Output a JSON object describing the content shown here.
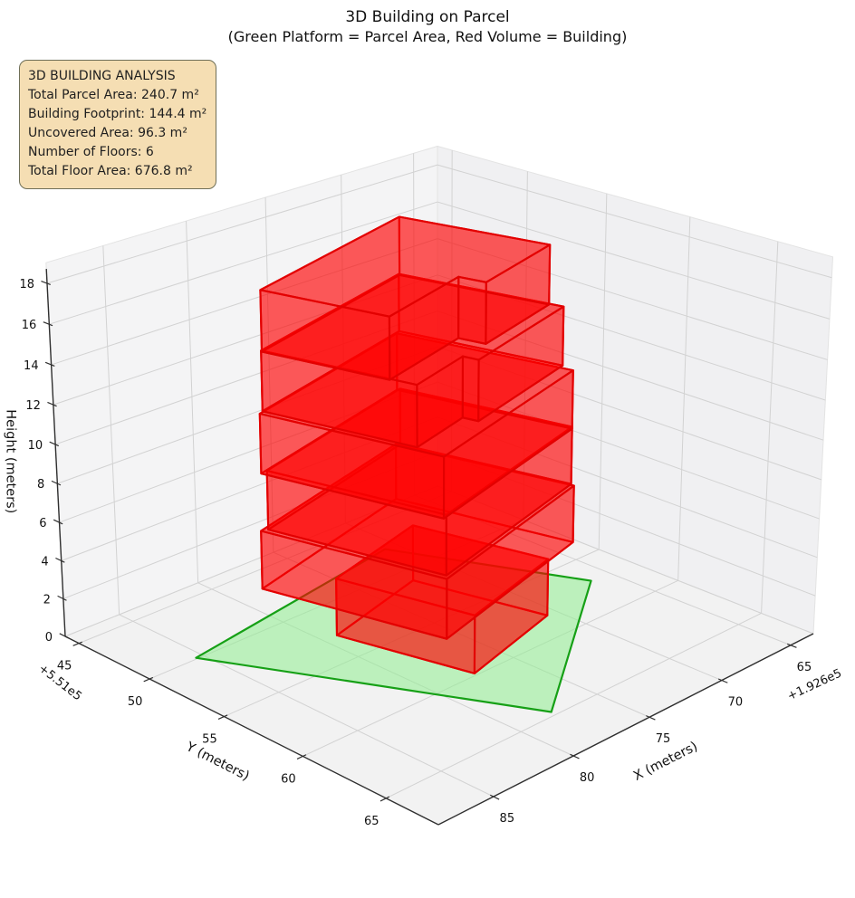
{
  "title": {
    "line1": "3D Building on Parcel",
    "line2": "(Green Platform = Parcel Area, Red Volume = Building)"
  },
  "info_box": {
    "title": "3D BUILDING ANALYSIS",
    "lines": [
      "3D BUILDING ANALYSIS",
      "Total Parcel Area: 240.7 m²",
      "Building Footprint: 144.4 m²",
      "Uncovered Area: 96.3 m²",
      "Number of Floors: 6",
      "Total Floor Area: 676.8 m²"
    ]
  },
  "chart_data": {
    "type": "3d-building",
    "title": "3D Building on Parcel",
    "subtitle": "(Green Platform = Parcel Area, Red Volume = Building)",
    "legend_note": "Green Platform = Parcel Area, Red Volume = Building",
    "stats": {
      "total_parcel_area_m2": 240.7,
      "building_footprint_m2": 144.4,
      "uncovered_area_m2": 96.3,
      "number_of_floors": 6,
      "total_floor_area_m2": 676.8,
      "floor_height_m": 3
    },
    "axes": {
      "x": {
        "label": "X (meters)",
        "ticks": [
          85,
          80,
          75,
          70,
          65
        ],
        "offset_text": "+1.926e5",
        "lim": [
          63.3,
          88.3
        ]
      },
      "y": {
        "label": "Y (meters)",
        "ticks": [
          45,
          50,
          55,
          60,
          65
        ],
        "offset_text": "+5.51e5",
        "lim": [
          44.0,
          68.0
        ]
      },
      "z": {
        "label": "Height (meters)",
        "ticks": [
          0,
          2,
          4,
          6,
          8,
          10,
          12,
          14,
          16,
          18
        ],
        "lim": [
          0,
          19
        ]
      }
    },
    "parcel": {
      "z": 0,
      "polygon_xy": [
        [
          85.4,
          49.9
        ],
        [
          70.8,
          47.6
        ],
        [
          66.3,
          57.1
        ],
        [
          77.7,
          64.7
        ]
      ],
      "area_m2": 240.7
    },
    "building": {
      "frame": {
        "origin": [
          82.9,
          51.0
        ],
        "e1": [
          -0.97,
          -0.24
        ],
        "e2": [
          -0.24,
          0.97
        ]
      },
      "floors": [
        {
          "z0": 0,
          "z1": 3,
          "poly_st": [
            [
              3.2,
              2.6
            ],
            [
              10.2,
              2.6
            ],
            [
              10.2,
              9.9
            ],
            [
              3.2,
              9.9
            ]
          ]
        },
        {
          "z0": 3,
          "z1": 6,
          "poly_st": [
            [
              0.5,
              0.3
            ],
            [
              12.5,
              0.3
            ],
            [
              12.5,
              10.0
            ],
            [
              0.5,
              10.0
            ]
          ]
        },
        {
          "z0": 6,
          "z1": 9,
          "poly_st": [
            [
              0.8,
              0.5
            ],
            [
              12.6,
              0.5
            ],
            [
              12.6,
              9.8
            ],
            [
              0.8,
              9.8
            ]
          ]
        },
        {
          "z0": 9,
          "z1": 12,
          "poly_st": [
            [
              0.4,
              0.45
            ],
            [
              12.4,
              0.45
            ],
            [
              12.4,
              9.9
            ],
            [
              0.4,
              9.9
            ]
          ]
        },
        {
          "z0": 12,
          "z1": 15,
          "poly_st": [
            [
              0.7,
              0.4
            ],
            [
              12.7,
              0.4
            ],
            [
              12.7,
              9.2
            ],
            [
              4.7,
              9.2
            ],
            [
              4.7,
              8.4
            ],
            [
              0.7,
              8.4
            ]
          ]
        },
        {
          "z0": 15,
          "z1": 18,
          "poly_st": [
            [
              0.6,
              0.5
            ],
            [
              12.6,
              0.5
            ],
            [
              12.6,
              8.5
            ],
            [
              6.6,
              8.5
            ],
            [
              6.6,
              7.1
            ],
            [
              0.6,
              7.1
            ]
          ]
        }
      ]
    },
    "colors": {
      "building_face": "#ff0000",
      "building_face_alpha": 0.4,
      "building_edge": "#e30000",
      "parcel_face": "#90ee90",
      "parcel_face_alpha": 0.55,
      "parcel_edge": "#16a016",
      "pane": "#f2f2f2",
      "grid": "#d2d2d2",
      "axis_line": "#2f2f2f",
      "info_box_bg": "#f5deb3",
      "info_box_border": "#6f6f58"
    }
  }
}
